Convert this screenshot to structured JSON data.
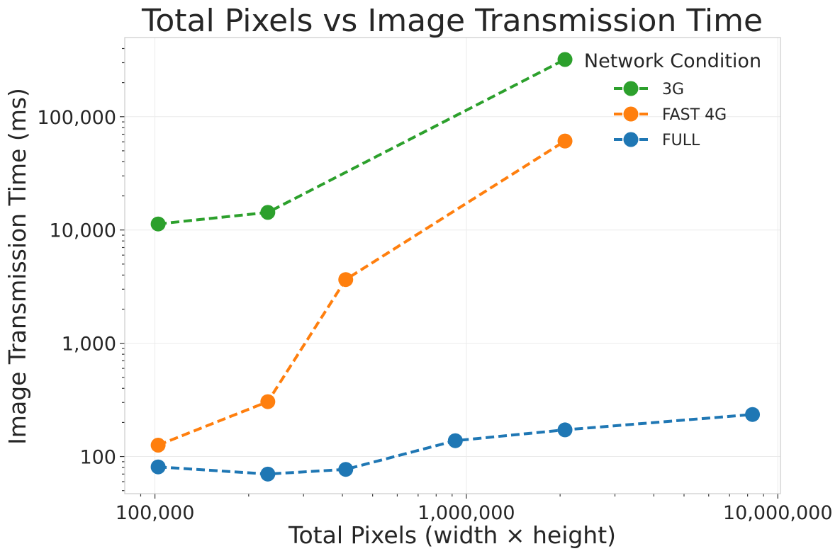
{
  "chart_data": {
    "type": "line",
    "title": "Total Pixels vs Image Transmission Time",
    "xlabel": "Total Pixels (width × height)",
    "ylabel": "Image Transmission Time (ms)",
    "x_scale": "log",
    "y_scale": "log",
    "xlim": [
      80000,
      10200000
    ],
    "ylim": [
      47,
      500000
    ],
    "x_ticks": [
      100000,
      1000000,
      10000000
    ],
    "x_tick_labels": [
      "100,000",
      "1,000,000",
      "10,000,000"
    ],
    "y_ticks": [
      100,
      1000,
      10000,
      100000
    ],
    "y_tick_labels": [
      "100",
      "1,000",
      "10,000",
      "100,000"
    ],
    "grid": true,
    "legend": {
      "title": "Network Condition",
      "placement": "top-right"
    },
    "series": [
      {
        "name": "3G",
        "color": "#2ca02c",
        "x": [
          102400,
          230400,
          2073600
        ],
        "y": [
          11300,
          14300,
          320000
        ]
      },
      {
        "name": "FAST 4G",
        "color": "#ff7f0e",
        "x": [
          102400,
          230400,
          409920,
          2073600
        ],
        "y": [
          126,
          305,
          3650,
          61000
        ]
      },
      {
        "name": "FULL",
        "color": "#1f77b4",
        "x": [
          102400,
          230400,
          409920,
          921600,
          2073600,
          8294400
        ],
        "y": [
          81,
          70,
          77,
          138,
          172,
          235
        ]
      }
    ]
  }
}
